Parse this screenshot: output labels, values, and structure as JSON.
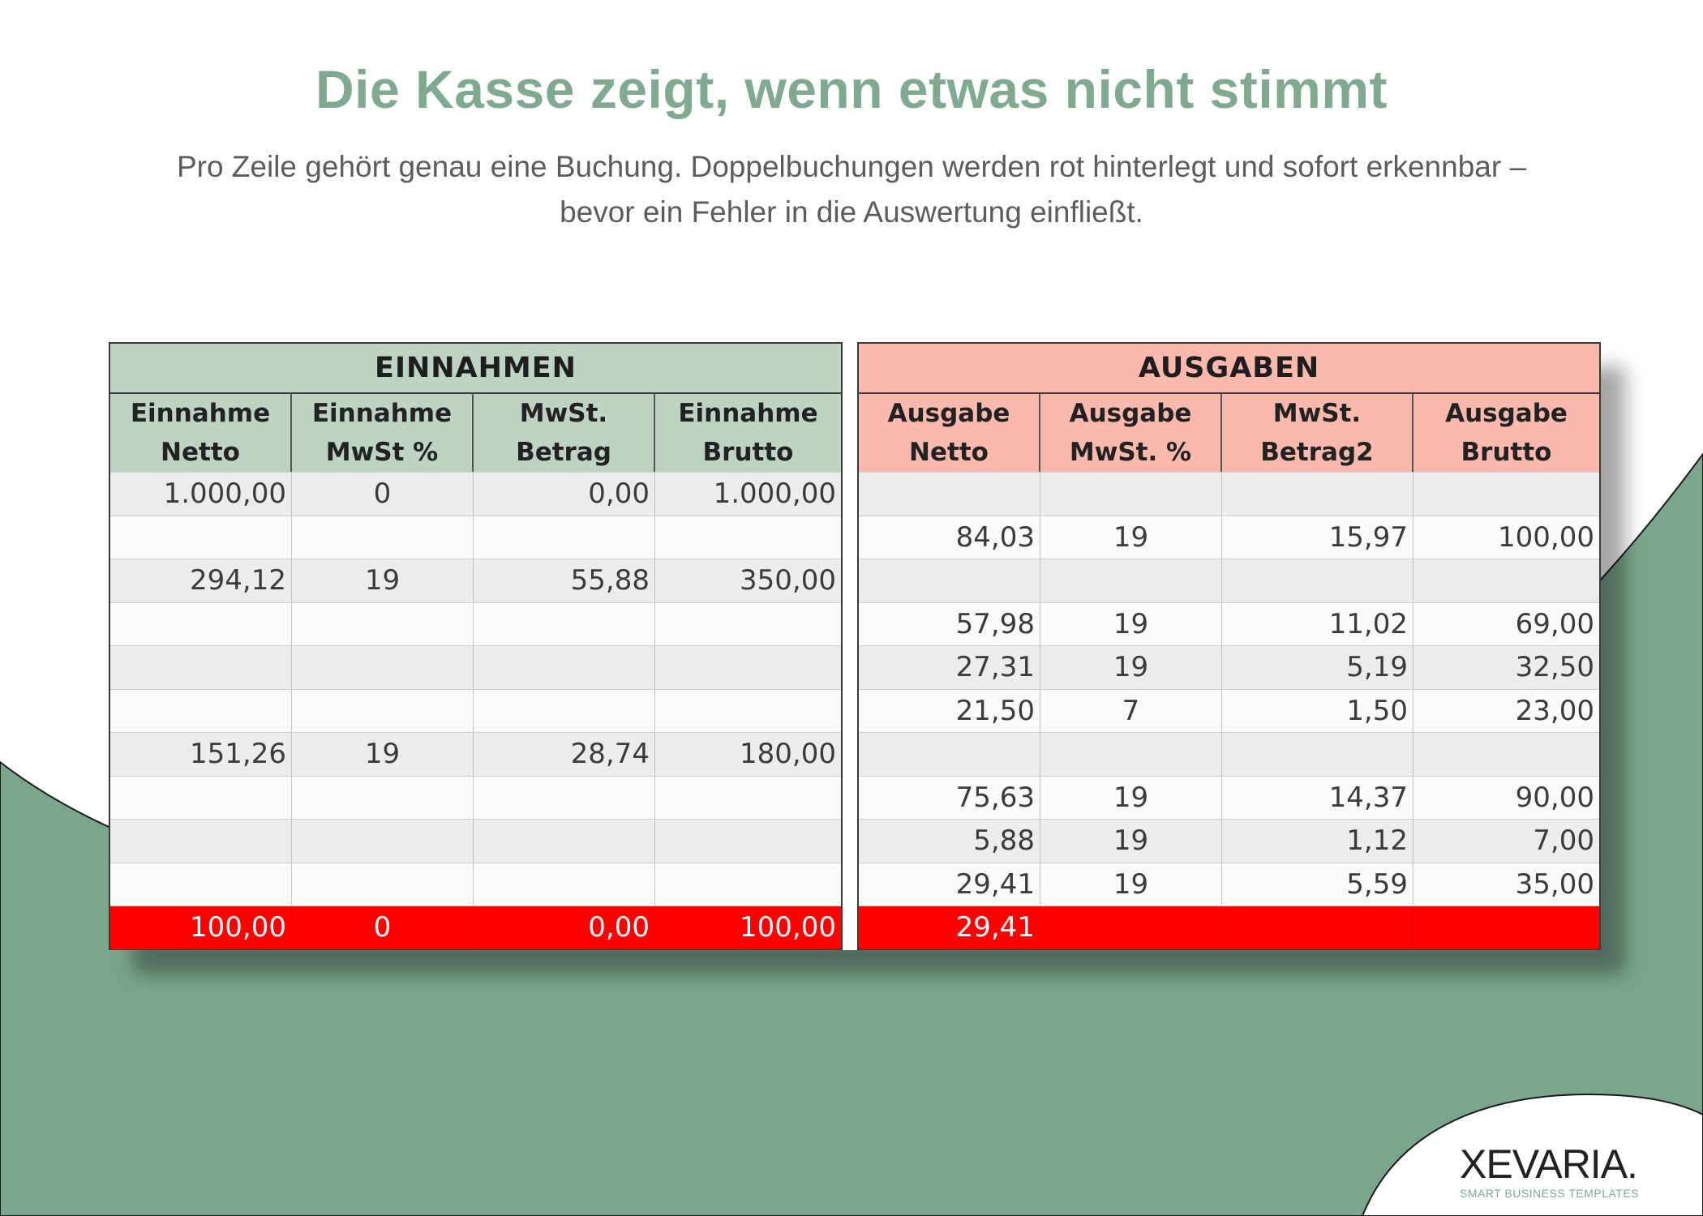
{
  "heading": {
    "title": "Die Kasse zeigt, wenn etwas nicht stimmt",
    "subtitle_line1": "Pro Zeile gehört genau eine Buchung. Doppelbuchungen werden rot hinterlegt und sofort erkennbar –",
    "subtitle_line2": "bevor ein Fehler in die Auswertung einfließt."
  },
  "colors": {
    "accent_green": "#7faa8f",
    "background_green": "#7ba68e",
    "einnahmen_header": "#bdd3c4",
    "ausgaben_header": "#fbb8ad",
    "duplicate_row": "#ff0000"
  },
  "einnahmen": {
    "title": "EINNAHMEN",
    "columns": [
      {
        "line1": "Einnahme",
        "line2": "Netto"
      },
      {
        "line1": "Einnahme",
        "line2": "MwSt %"
      },
      {
        "line1": "MwSt.",
        "line2": "Betrag"
      },
      {
        "line1": "Einnahme",
        "line2": "Brutto"
      }
    ],
    "rows": [
      [
        "1.000,00",
        "0",
        "0,00",
        "1.000,00"
      ],
      [
        "",
        "",
        "",
        ""
      ],
      [
        "294,12",
        "19",
        "55,88",
        "350,00"
      ],
      [
        "",
        "",
        "",
        ""
      ],
      [
        "",
        "",
        "",
        ""
      ],
      [
        "",
        "",
        "",
        ""
      ],
      [
        "151,26",
        "19",
        "28,74",
        "180,00"
      ],
      [
        "",
        "",
        "",
        ""
      ],
      [
        "",
        "",
        "",
        ""
      ],
      [
        "",
        "",
        "",
        ""
      ],
      [
        "100,00",
        "0",
        "0,00",
        "100,00"
      ]
    ]
  },
  "ausgaben": {
    "title": "AUSGABEN",
    "columns": [
      {
        "line1": "Ausgabe",
        "line2": "Netto"
      },
      {
        "line1": "Ausgabe",
        "line2": "MwSt. %"
      },
      {
        "line1": "MwSt.",
        "line2": "Betrag2"
      },
      {
        "line1": "Ausgabe",
        "line2": "Brutto"
      }
    ],
    "rows": [
      [
        "",
        "",
        "",
        ""
      ],
      [
        "84,03",
        "19",
        "15,97",
        "100,00"
      ],
      [
        "",
        "",
        "",
        ""
      ],
      [
        "57,98",
        "19",
        "11,02",
        "69,00"
      ],
      [
        "27,31",
        "19",
        "5,19",
        "32,50"
      ],
      [
        "21,50",
        "7",
        "1,50",
        "23,00"
      ],
      [
        "",
        "",
        "",
        ""
      ],
      [
        "75,63",
        "19",
        "14,37",
        "90,00"
      ],
      [
        "5,88",
        "19",
        "1,12",
        "7,00"
      ],
      [
        "29,41",
        "19",
        "5,59",
        "35,00"
      ],
      [
        "29,41",
        "",
        "",
        ""
      ]
    ]
  },
  "duplicate_row_index": 10,
  "logo": {
    "name": "XEVARIA.",
    "tagline": "SMART BUSINESS TEMPLATES"
  }
}
